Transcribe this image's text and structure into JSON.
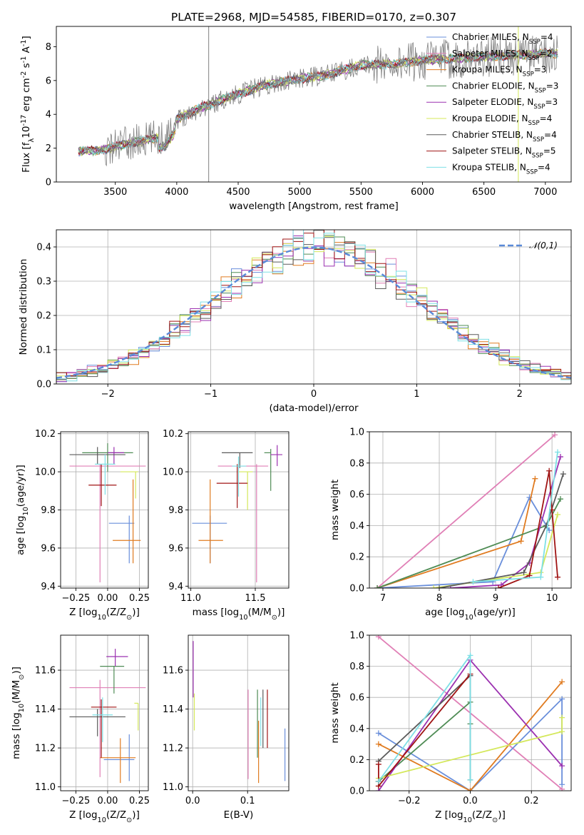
{
  "title": "PLATE=2968, MJD=54585, FIBERID=0170, z=0.307",
  "colors": {
    "Chabrier MILES": "#6a8fdb",
    "Salpeter MILES": "#e07fb6",
    "Kroupa MILES": "#e07b20",
    "Chabrier ELODIE": "#4f8c55",
    "Salpeter ELODIE": "#9b30b0",
    "Kroupa ELODIE": "#d4e85a",
    "Chabrier STELIB": "#5a5a5a",
    "Salpeter STELIB": "#a01414",
    "Kroupa STELIB": "#7ee0e6",
    "data": "#808080",
    "normal": "#5a8ad8"
  },
  "legend_labels": [
    "Chabrier MILES, N$_{SSP}$=4",
    "Salpeter MILES, N$_{SSP}$=2",
    "Kroupa MILES, N$_{SSP}$=3",
    "Chabrier ELODIE, N$_{SSP}$=3",
    "Salpeter ELODIE, N$_{SSP}$=3",
    "Kroupa ELODIE, N$_{SSP}$=4",
    "Chabrier STELIB, N$_{SSP}$=4",
    "Salpeter STELIB, N$_{SSP}$=5",
    "Kroupa STELIB, N$_{SSP}$=4"
  ],
  "legend_sub": "SSP",
  "chart_data": [
    {
      "id": "spectrum",
      "type": "line",
      "xlabel": "wavelength [Angstrom, rest frame]",
      "ylabel": "Flux [f$_\\lambda$10$^{-17}$ erg cm$^{-2}$ s$^{-1}$ A$^{-1}$]",
      "xlim": [
        3020,
        7210
      ],
      "ylim": [
        0,
        9.2
      ],
      "xticks": [
        3500,
        4000,
        4500,
        5000,
        5500,
        6000,
        6500,
        7000
      ],
      "yticks": [
        0,
        2,
        4,
        6,
        8
      ],
      "grid": false,
      "legend": "right",
      "series": [
        {
          "name": "Chabrier MILES",
          "key": "Chabrier MILES"
        },
        {
          "name": "Salpeter MILES",
          "key": "Salpeter MILES"
        },
        {
          "name": "Kroupa MILES",
          "key": "Kroupa MILES"
        },
        {
          "name": "Chabrier ELODIE",
          "key": "Chabrier ELODIE"
        },
        {
          "name": "Salpeter ELODIE",
          "key": "Salpeter ELODIE"
        },
        {
          "name": "Kroupa ELODIE",
          "key": "Kroupa ELODIE"
        },
        {
          "name": "Chabrier STELIB",
          "key": "Chabrier STELIB"
        },
        {
          "name": "Salpeter STELIB",
          "key": "Salpeter STELIB"
        },
        {
          "name": "Kroupa STELIB",
          "key": "Kroupa STELIB"
        }
      ],
      "continuum": {
        "x": [
          3200,
          3400,
          3500,
          3700,
          3900,
          4000,
          4200,
          4500,
          4700,
          5000,
          5200,
          5500,
          5800,
          6000,
          6500,
          7000
        ],
        "y": [
          1.8,
          1.9,
          2.1,
          2.4,
          2.7,
          3.7,
          4.4,
          5.2,
          5.7,
          6.1,
          6.3,
          6.9,
          7.0,
          7.2,
          7.4,
          7.6
        ]
      },
      "vlines": [
        4260,
        6780
      ]
    },
    {
      "id": "residuals",
      "type": "histogram",
      "xlabel": "(data-model)/error",
      "ylabel": "Normed distribution",
      "xlim": [
        -2.5,
        2.5
      ],
      "ylim": [
        0,
        0.45
      ],
      "xticks": [
        -2,
        -1,
        0,
        1,
        2
      ],
      "yticks": [
        0.0,
        0.1,
        0.2,
        0.3,
        0.4
      ],
      "bin_width": 0.1,
      "grid": true,
      "legend": "top-right",
      "normal_label": "$\\mathcal{N}(0,1)$"
    },
    {
      "id": "age-Z",
      "type": "errorbar",
      "xlabel": "Z [log$_{10}$($Z/Z_\\odot$)]",
      "ylabel": "age  [log$_{10}$($age/yr$)]",
      "xlim": [
        -0.37,
        0.32
      ],
      "ylim": [
        9.39,
        10.21
      ],
      "xticks": [
        -0.25,
        0.0,
        0.25
      ],
      "yticks": [
        9.4,
        9.6,
        9.8,
        10.0,
        10.2
      ],
      "grid": true,
      "points": [
        {
          "s": "Salpeter MILES",
          "x": -0.06,
          "xl": 0.24,
          "xr": 0.36,
          "y": 10.03,
          "yl": 0.61,
          "yr": 0.01
        },
        {
          "s": "Chabrier MILES",
          "x": 0.17,
          "xl": 0.16,
          "xr": 0.04,
          "y": 9.73,
          "yl": 0.21,
          "yr": 0.04
        },
        {
          "s": "Kroupa MILES",
          "x": 0.2,
          "xl": 0.16,
          "xr": 0.06,
          "y": 9.64,
          "yl": 0.12,
          "yr": 0.32
        },
        {
          "s": "Chabrier ELODIE",
          "x": 0.0,
          "xl": 0.2,
          "xr": 0.2,
          "y": 10.1,
          "yl": 0.1,
          "yr": 0.05
        },
        {
          "s": "Salpeter ELODIE",
          "x": 0.05,
          "xl": 0.05,
          "xr": 0.08,
          "y": 10.1,
          "yl": 0.06,
          "yr": 0.03
        },
        {
          "s": "Kroupa ELODIE",
          "x": 0.22,
          "xl": 0.12,
          "xr": 0.02,
          "y": 10.0,
          "yl": 0.14,
          "yr": 0.0
        },
        {
          "s": "Chabrier STELIB",
          "x": -0.08,
          "xl": 0.22,
          "xr": 0.22,
          "y": 10.09,
          "yl": 0.05,
          "yr": 0.04
        },
        {
          "s": "Salpeter STELIB",
          "x": -0.05,
          "xl": 0.1,
          "xr": 0.12,
          "y": 9.93,
          "yl": 0.11,
          "yr": 0.11
        },
        {
          "s": "Kroupa STELIB",
          "x": -0.02,
          "xl": 0.08,
          "xr": 0.08,
          "y": 10.04,
          "yl": 0.16,
          "yr": 0.05
        }
      ]
    },
    {
      "id": "age-mass",
      "type": "errorbar",
      "xlabel": "mass [log$_{10}$($M/M_\\odot$)]",
      "ylabel": "",
      "xlim": [
        10.98,
        11.76
      ],
      "ylim": [
        9.39,
        10.21
      ],
      "xticks": [
        11.0,
        11.5
      ],
      "yticks": [
        9.4,
        9.6,
        9.8,
        10.0,
        10.2
      ],
      "grid": true,
      "points": [
        {
          "s": "Salpeter MILES",
          "x": 11.51,
          "xl": 0.3,
          "xr": 0.09,
          "y": 10.03,
          "yl": 0.61,
          "yr": 0.01
        },
        {
          "s": "Chabrier MILES",
          "x": 11.15,
          "xl": 0.14,
          "xr": 0.13,
          "y": 9.73,
          "yl": 0.21,
          "yr": 0.04
        },
        {
          "s": "Kroupa MILES",
          "x": 11.15,
          "xl": 0.09,
          "xr": 0.1,
          "y": 9.64,
          "yl": 0.12,
          "yr": 0.32
        },
        {
          "s": "Chabrier ELODIE",
          "x": 11.62,
          "xl": 0.05,
          "xr": 0.0,
          "y": 10.1,
          "yl": 0.2,
          "yr": 0.02
        },
        {
          "s": "Salpeter ELODIE",
          "x": 11.67,
          "xl": 0.05,
          "xr": 0.04,
          "y": 10.09,
          "yl": 0.06,
          "yr": 0.05
        },
        {
          "s": "Kroupa ELODIE",
          "x": 11.44,
          "xl": 0.07,
          "xr": 0.04,
          "y": 10.0,
          "yl": 0.2,
          "yr": 0.0
        },
        {
          "s": "Chabrier STELIB",
          "x": 11.38,
          "xl": 0.14,
          "xr": 0.1,
          "y": 10.1,
          "yl": 0.08,
          "yr": 0.0
        },
        {
          "s": "Salpeter STELIB",
          "x": 11.36,
          "xl": 0.16,
          "xr": 0.08,
          "y": 9.94,
          "yl": 0.13,
          "yr": 0.1
        },
        {
          "s": "Kroupa STELIB",
          "x": 11.37,
          "xl": 0.05,
          "xr": 0.06,
          "y": 10.03,
          "yl": 0.16,
          "yr": 0.05
        }
      ]
    },
    {
      "id": "weight-age",
      "type": "line",
      "xlabel": "age  [log$_{10}$($age/yr$)]",
      "ylabel": "mass weight",
      "xlim": [
        6.76,
        10.34
      ],
      "ylim": [
        0,
        1.0
      ],
      "xticks": [
        7,
        8,
        9,
        10
      ],
      "yticks": [
        0.0,
        0.2,
        0.4,
        0.6,
        0.8,
        1.0
      ],
      "grid": true,
      "series": [
        {
          "s": "Salpeter MILES",
          "x": [
            6.9,
            10.05
          ],
          "y": [
            0.0,
            0.98
          ]
        },
        {
          "s": "Chabrier MILES",
          "x": [
            6.9,
            8.95,
            9.6,
            9.95
          ],
          "y": [
            0.0,
            0.04,
            0.58,
            0.37
          ]
        },
        {
          "s": "Kroupa MILES",
          "x": [
            6.9,
            9.45,
            9.7
          ],
          "y": [
            0.0,
            0.3,
            0.7
          ]
        },
        {
          "s": "Chabrier ELODIE",
          "x": [
            6.9,
            9.9,
            10.15
          ],
          "y": [
            0.0,
            0.4,
            0.57
          ]
        },
        {
          "s": "Salpeter ELODIE",
          "x": [
            8.2,
            9.1,
            9.6,
            10.15
          ],
          "y": [
            0.0,
            0.02,
            0.16,
            0.84
          ]
        },
        {
          "s": "Kroupa ELODIE",
          "x": [
            7.9,
            9.8,
            10.1
          ],
          "y": [
            0.0,
            0.1,
            0.47
          ]
        },
        {
          "s": "Chabrier STELIB",
          "x": [
            8.0,
            9.5,
            9.9,
            10.2
          ],
          "y": [
            0.0,
            0.1,
            0.4,
            0.73
          ]
        },
        {
          "s": "Salpeter STELIB",
          "x": [
            9.05,
            9.6,
            9.95,
            10.0,
            10.1
          ],
          "y": [
            0.0,
            0.08,
            0.75,
            0.5,
            0.07
          ]
        },
        {
          "s": "Kroupa STELIB",
          "x": [
            8.6,
            9.8,
            10.1
          ],
          "y": [
            0.04,
            0.07,
            0.87
          ]
        }
      ]
    },
    {
      "id": "mass-Z",
      "type": "errorbar",
      "xlabel": "Z [log$_{10}$($Z/Z_\\odot$)]",
      "ylabel": "mass [log$_{10}$($M/M_\\odot$)]",
      "xlim": [
        -0.37,
        0.32
      ],
      "ylim": [
        10.98,
        11.78
      ],
      "xticks": [
        -0.25,
        0.0,
        0.25
      ],
      "yticks": [
        11.0,
        11.2,
        11.4,
        11.6
      ],
      "grid": true,
      "points": [
        {
          "s": "Salpeter MILES",
          "x": -0.06,
          "xl": 0.24,
          "xr": 0.36,
          "y": 11.51,
          "yl": 0.46,
          "yr": 0.04
        },
        {
          "s": "Chabrier MILES",
          "x": 0.17,
          "xl": 0.2,
          "xr": 0.04,
          "y": 11.14,
          "yl": 0.11,
          "yr": 0.13
        },
        {
          "s": "Kroupa MILES",
          "x": 0.1,
          "xl": 0.16,
          "xr": 0.12,
          "y": 11.15,
          "yl": 0.13,
          "yr": 0.1
        },
        {
          "s": "Chabrier ELODIE",
          "x": 0.05,
          "xl": 0.11,
          "xr": 0.08,
          "y": 11.62,
          "yl": 0.14,
          "yr": 0.0
        },
        {
          "s": "Salpeter ELODIE",
          "x": 0.06,
          "xl": 0.07,
          "xr": 0.1,
          "y": 11.67,
          "yl": 0.05,
          "yr": 0.04
        },
        {
          "s": "Kroupa ELODIE",
          "x": 0.24,
          "xl": 0.03,
          "xr": 0.0,
          "y": 11.43,
          "yl": 0.14,
          "yr": 0.0
        },
        {
          "s": "Chabrier STELIB",
          "x": -0.08,
          "xl": 0.22,
          "xr": 0.22,
          "y": 11.36,
          "yl": 0.1,
          "yr": 0.04
        },
        {
          "s": "Salpeter STELIB",
          "x": -0.05,
          "xl": 0.08,
          "xr": 0.12,
          "y": 11.41,
          "yl": 0.26,
          "yr": 0.04
        },
        {
          "s": "Kroupa STELIB",
          "x": -0.04,
          "xl": 0.08,
          "xr": 0.08,
          "y": 11.37,
          "yl": 0.14,
          "yr": 0.09
        }
      ]
    },
    {
      "id": "mass-EBV",
      "type": "errorbar",
      "xlabel": "E(B-V)",
      "ylabel": "",
      "xlim": [
        -0.008,
        0.175
      ],
      "ylim": [
        10.98,
        11.78
      ],
      "xticks": [
        0.0,
        0.1
      ],
      "yticks": [
        11.0,
        11.2,
        11.4,
        11.6
      ],
      "grid": true,
      "points": [
        {
          "s": "Salpeter MILES",
          "x": 0.101,
          "y": 11.3,
          "yl": 0.26,
          "yr": 0.2
        },
        {
          "s": "Chabrier MILES",
          "x": 0.168,
          "y": 11.15,
          "yl": 0.12,
          "yr": 0.15
        },
        {
          "s": "Kroupa MILES",
          "x": 0.12,
          "y": 11.18,
          "yl": 0.16,
          "yr": 0.16
        },
        {
          "s": "Chabrier ELODIE",
          "x": 0.118,
          "y": 11.35,
          "yl": 0.2,
          "yr": 0.15
        },
        {
          "s": "Salpeter ELODIE",
          "x": 0.001,
          "y": 11.62,
          "yl": 0.16,
          "yr": 0.13
        },
        {
          "s": "Kroupa ELODIE",
          "x": 0.003,
          "y": 11.43,
          "yl": 0.14,
          "yr": 0.05
        },
        {
          "s": "Chabrier STELIB",
          "x": 0.128,
          "y": 11.36,
          "yl": 0.16,
          "yr": 0.14
        },
        {
          "s": "Salpeter STELIB",
          "x": 0.136,
          "y": 11.4,
          "yl": 0.2,
          "yr": 0.1
        },
        {
          "s": "Kroupa STELIB",
          "x": 0.124,
          "y": 11.37,
          "yl": 0.16,
          "yr": 0.09
        }
      ]
    },
    {
      "id": "weight-Z",
      "type": "line",
      "xlabel": "Z [log$_{10}$($Z/Z_\\odot$)]",
      "ylabel": "mass weight",
      "xlim": [
        -0.33,
        0.33
      ],
      "ylim": [
        0,
        1.0
      ],
      "xticks": [
        -0.2,
        0.0,
        0.2
      ],
      "yticks": [
        0.0,
        0.2,
        0.4,
        0.6,
        0.8,
        1.0
      ],
      "grid": true,
      "series": [
        {
          "s": "Salpeter MILES",
          "x": [
            -0.3,
            0.3
          ],
          "y": [
            0.99,
            0.01
          ]
        },
        {
          "s": "Chabrier MILES",
          "x": [
            -0.3,
            0.0,
            0.3,
            0.3
          ],
          "y": [
            0.37,
            0.0,
            0.59,
            0.04
          ]
        },
        {
          "s": "Kroupa MILES",
          "x": [
            -0.3,
            0.0,
            0.3
          ],
          "y": [
            0.3,
            0.0,
            0.7
          ]
        },
        {
          "s": "Chabrier ELODIE",
          "x": [
            -0.3,
            0.0,
            0.0
          ],
          "y": [
            0.06,
            0.57,
            0.43
          ]
        },
        {
          "s": "Salpeter ELODIE",
          "x": [
            -0.3,
            0.0,
            0.3
          ],
          "y": [
            0.0,
            0.84,
            0.16
          ]
        },
        {
          "s": "Kroupa ELODIE",
          "x": [
            -0.3,
            0.3,
            0.3
          ],
          "y": [
            0.08,
            0.38,
            0.47
          ]
        },
        {
          "s": "Chabrier STELIB",
          "x": [
            -0.3,
            0.0,
            0.0
          ],
          "y": [
            0.19,
            0.74,
            0.07
          ]
        },
        {
          "s": "Salpeter STELIB",
          "x": [
            -0.3,
            -0.3,
            -0.3,
            0.0
          ],
          "y": [
            0.06,
            0.17,
            0.03,
            0.75
          ]
        },
        {
          "s": "Kroupa STELIB",
          "x": [
            -0.3,
            0.0,
            0.0
          ],
          "y": [
            0.06,
            0.87,
            0.07
          ]
        }
      ]
    }
  ]
}
